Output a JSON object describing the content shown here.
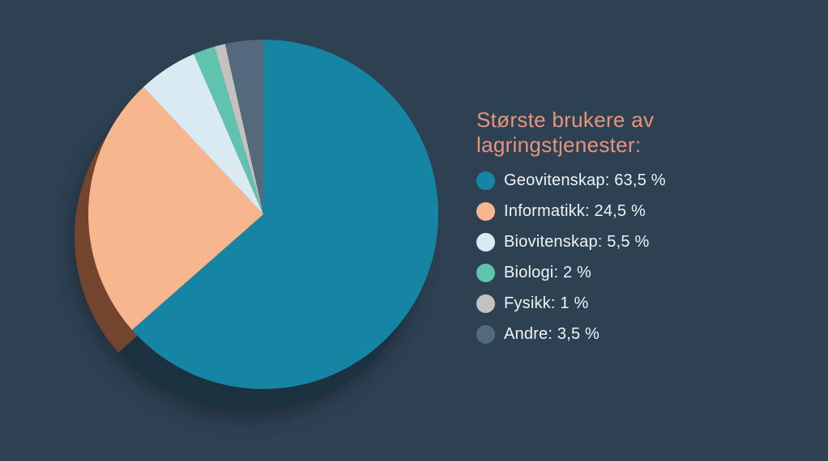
{
  "background_color": "#2e4153",
  "chart_data": {
    "type": "pie",
    "title": "Største brukere av lagringstjenester:",
    "title_color": "#e8937b",
    "legend_position": "right",
    "legend_text_color": "#eff3f5",
    "start_angle_deg": 0,
    "direction": "clockwise",
    "total": 100,
    "grid": false,
    "slices": [
      {
        "label": "Geovitenskap",
        "value": 63.5,
        "display": "Geovitenskap: 63,5 %",
        "color": "#1685a4",
        "shadow_color": "#1d3240"
      },
      {
        "label": "Informatikk",
        "value": 24.5,
        "display": "Informatikk: 24,5 %",
        "color": "#f8b68f",
        "shadow_color": "#73452f"
      },
      {
        "label": "Biovitenskap",
        "value": 5.5,
        "display": "Biovitenskap: 5,5 %",
        "color": "#d9eaf2",
        "shadow_color": "#667078"
      },
      {
        "label": "Biologi",
        "value": 2,
        "display": "Biologi: 2 %",
        "color": "#5fc3ae",
        "shadow_color": "#2f5f55"
      },
      {
        "label": "Fysikk",
        "value": 1,
        "display": "Fysikk: 1 %",
        "color": "#c3c2be",
        "shadow_color": "#5e5d5a"
      },
      {
        "label": "Andre",
        "value": 3.5,
        "display": "Andre: 3,5 %",
        "color": "#55697d",
        "shadow_color": "#2a3441"
      }
    ],
    "soft_shadow_color": "#1c2834"
  }
}
